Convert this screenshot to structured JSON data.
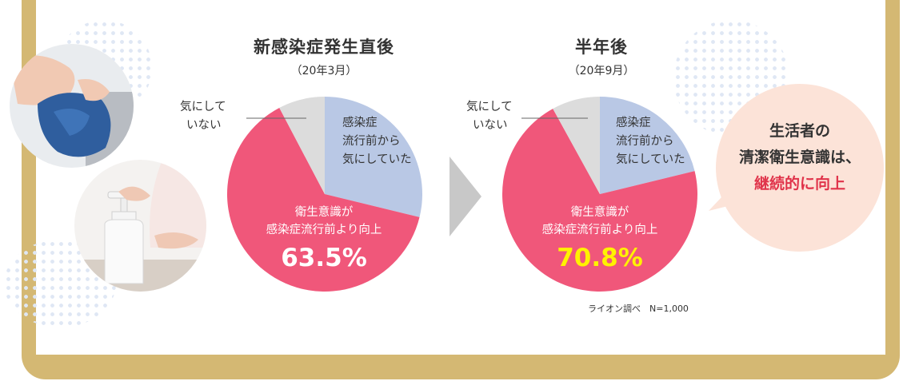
{
  "chart_data": [
    {
      "type": "pie",
      "title": "新感染症発生直後",
      "subtitle": "（20年3月）",
      "slices": [
        {
          "label": "感染症流行前から気にしていた",
          "value": 28.8,
          "color": "#b9c8e5"
        },
        {
          "label": "衛生意識が感染症流行前より向上",
          "value": 63.5,
          "color": "#f0577a"
        },
        {
          "label": "気にしていない",
          "value": 7.7,
          "color": "#dcdcdc"
        }
      ],
      "label_before_line1": "感染症",
      "label_before_line2": "流行前から",
      "label_before_line3": "気にしていた",
      "label_improved_line1": "衛生意識が",
      "label_improved_line2": "感染症流行前より向上",
      "label_notcare_line1": "気にして",
      "label_notcare_line2": "いない",
      "percent_label": "63.5%",
      "percent_color": "#ffffff"
    },
    {
      "type": "pie",
      "title": "半年後",
      "subtitle": "（20年9月）",
      "slices": [
        {
          "label": "感染症流行前から気にしていた",
          "value": 21.2,
          "color": "#b9c8e5"
        },
        {
          "label": "衛生意識が感染症流行前より向上",
          "value": 70.8,
          "color": "#f0577a"
        },
        {
          "label": "気にしていない",
          "value": 8.0,
          "color": "#dcdcdc"
        }
      ],
      "label_before_line1": "感染症",
      "label_before_line2": "流行前から",
      "label_before_line3": "気にしていた",
      "label_improved_line1": "衛生意識が",
      "label_improved_line2": "感染症流行前より向上",
      "label_notcare_line1": "気にして",
      "label_notcare_line2": "いない",
      "percent_label": "70.8%",
      "percent_color": "#fff200"
    }
  ],
  "bubble": {
    "line1": "生活者の",
    "line2": "清潔衛生意識は、",
    "line3": "継続的に向上"
  },
  "source_note": "ライオン調べ　N=1,000",
  "colors": {
    "frame": "#d4b873",
    "accent": "#e0334a",
    "bubble": "#fce3d8"
  }
}
